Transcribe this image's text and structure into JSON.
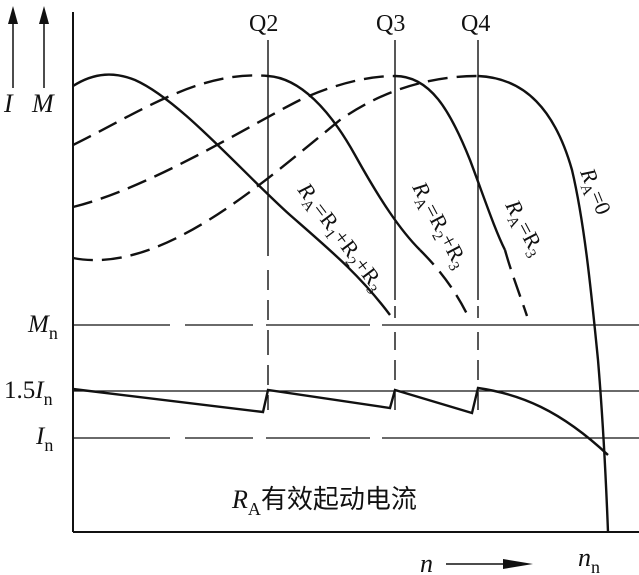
{
  "axes": {
    "y_labels": [
      "I",
      "M"
    ],
    "x_label": "n",
    "x_speed_label": "n",
    "x_speed_label_sub": "n"
  },
  "steps": [
    "Q2",
    "Q3",
    "Q4"
  ],
  "levels": {
    "torque": {
      "label": "M",
      "sub": "n"
    },
    "current_1_5": {
      "label_prefix": "1.5",
      "label": "I",
      "sub": "n"
    },
    "current": {
      "label": "I",
      "sub": "n"
    }
  },
  "curve_labels": [
    {
      "parts": [
        "R",
        "A",
        "=R",
        "1",
        "+R",
        "2",
        "+R",
        "3"
      ]
    },
    {
      "parts": [
        "R",
        "A",
        "=R",
        "2",
        "+R",
        "3"
      ]
    },
    {
      "parts": [
        "R",
        "A",
        "=R",
        "3"
      ]
    },
    {
      "parts": [
        "R",
        "A",
        "=0"
      ]
    }
  ],
  "caption": {
    "symbol": "R",
    "sub": "A",
    "text": "有效起动电流"
  }
}
